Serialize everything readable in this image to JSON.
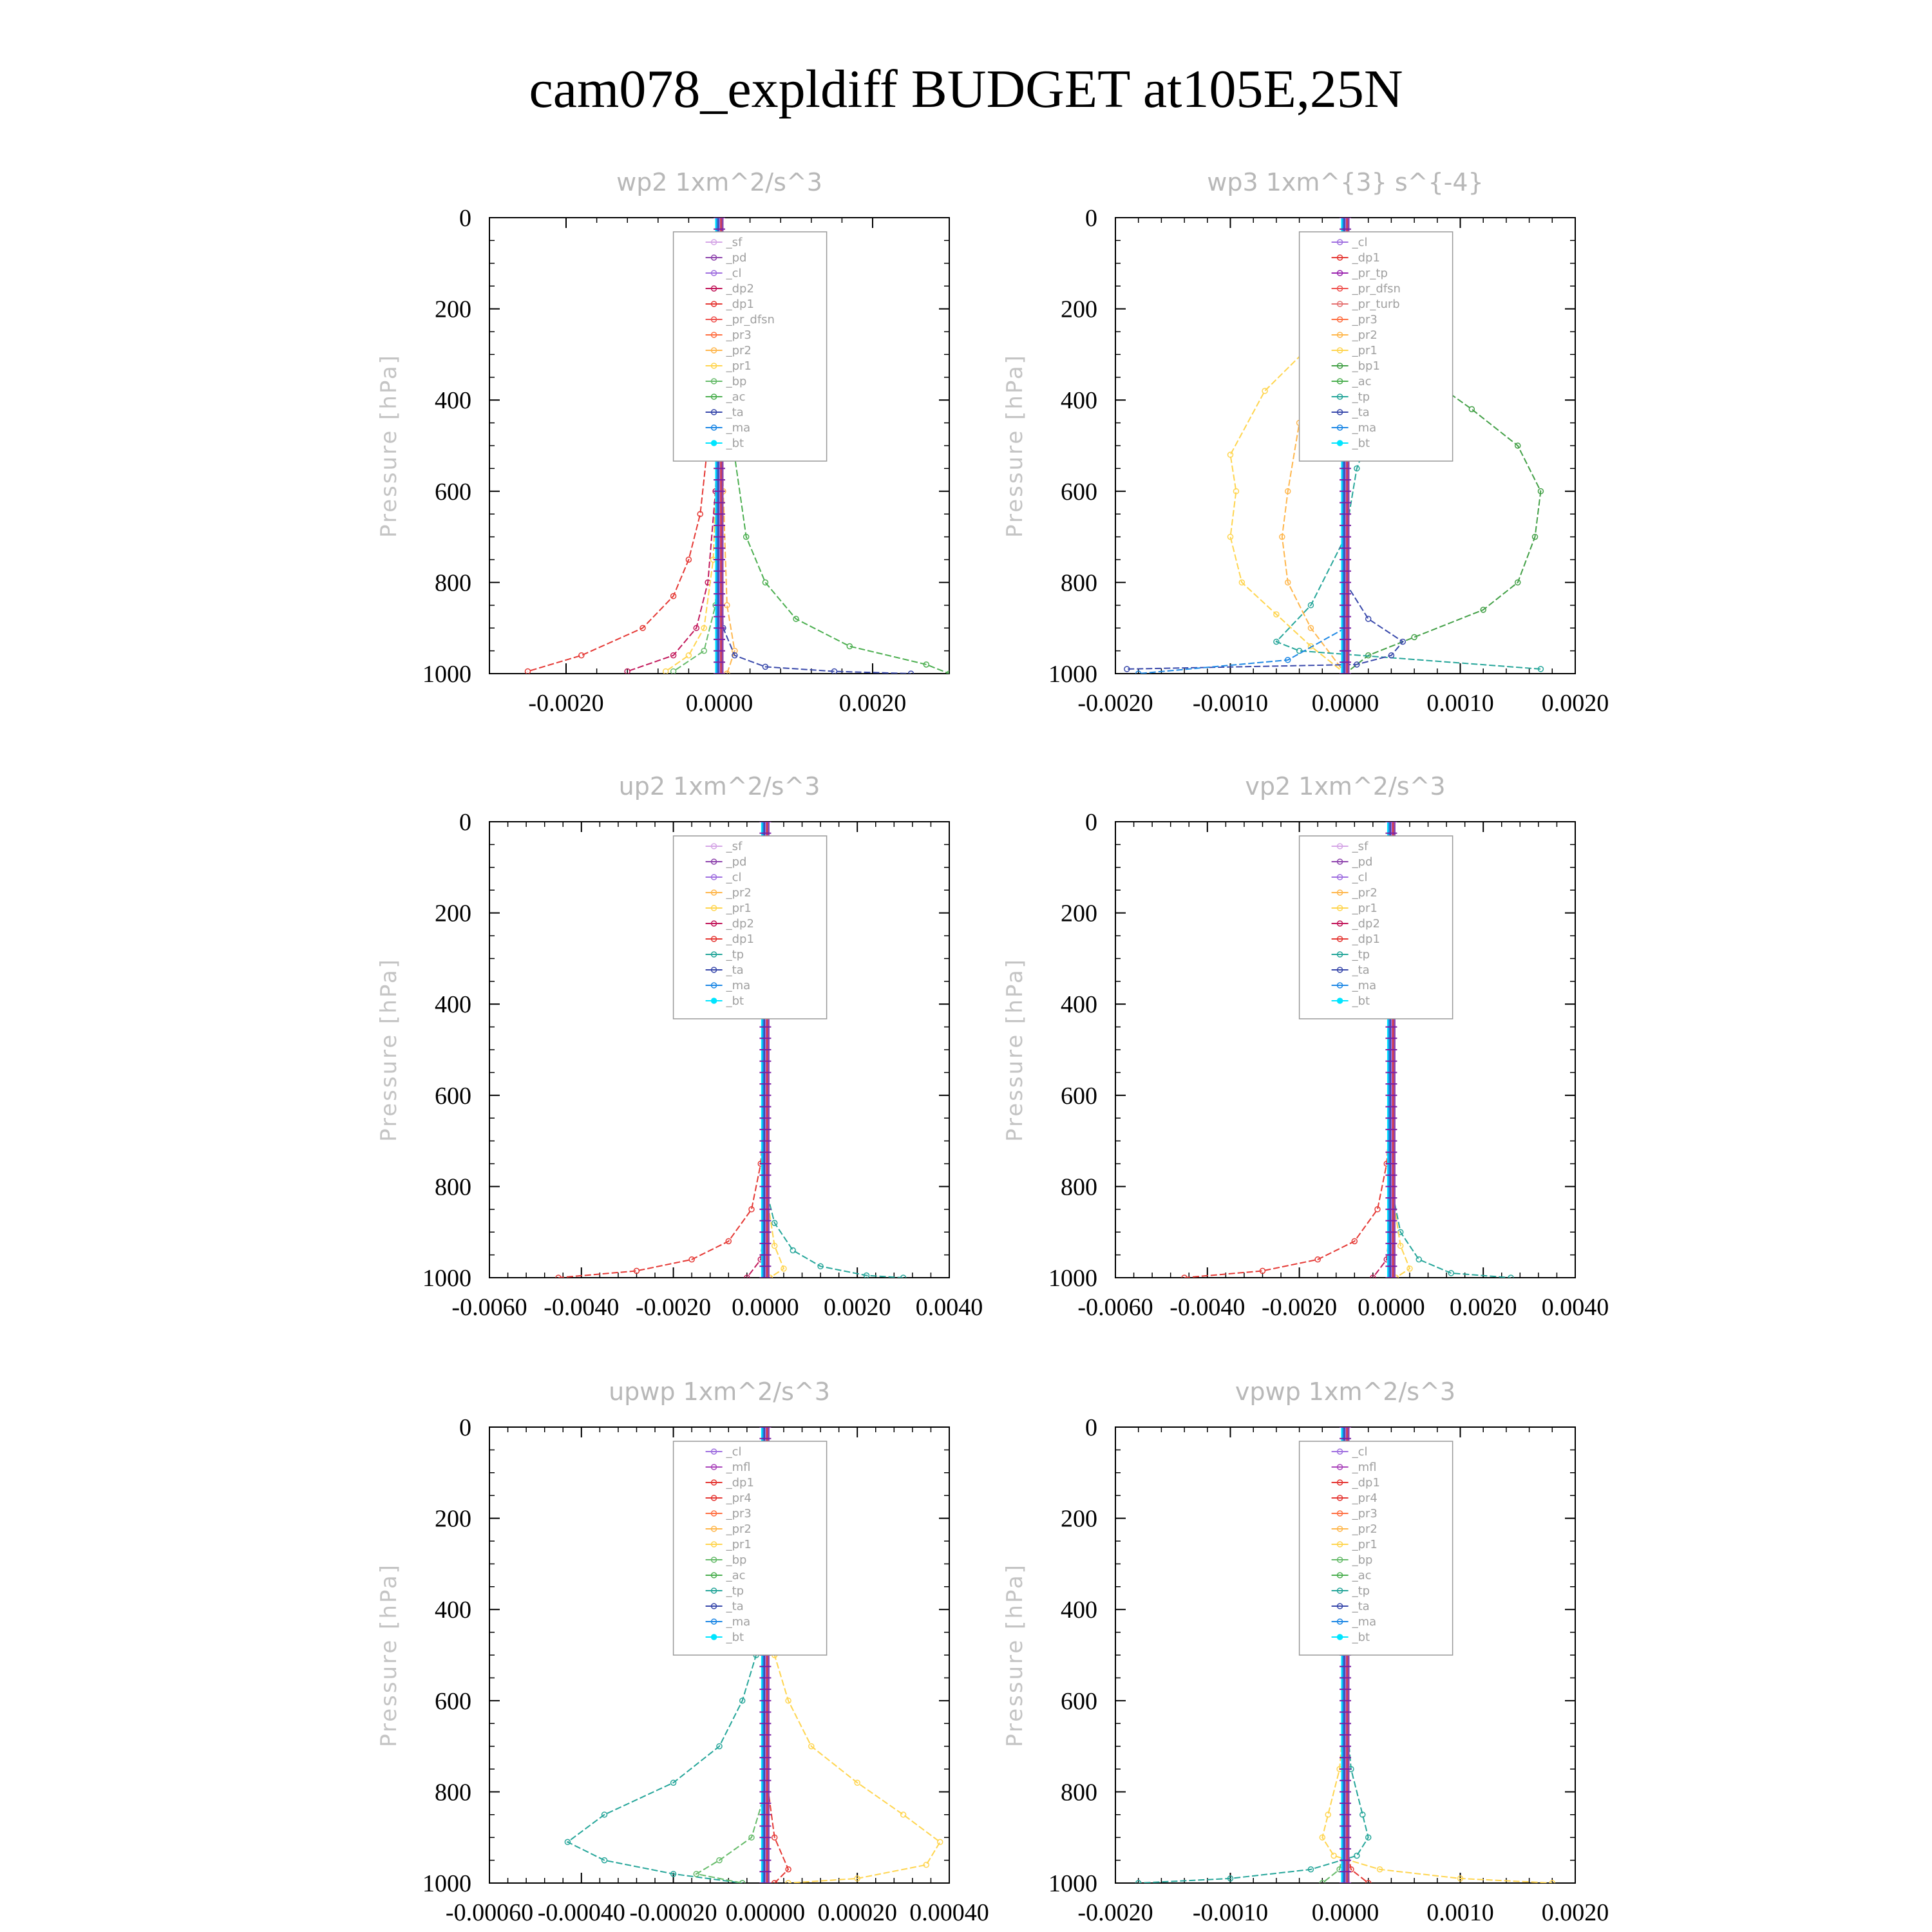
{
  "title": "cam078_expldiff  BUDGET at105E,25N",
  "colors": {
    "_sf": "#d5a6e6",
    "_pd": "#8e44ad",
    "_cl": "#a070e0",
    "_dp2": "#c2185b",
    "_dp1": "#e53935",
    "_pr_dfsn": "#ef5350",
    "_pr_tp": "#9c27b0",
    "_pr_turb": "#e57373",
    "_pr4": "#e53935",
    "_pr3": "#ff7043",
    "_pr2": "#ffb74d",
    "_pr1": "#ffd54f",
    "_bp": "#66bb6a",
    "_bp1": "#43a047",
    "_ac": "#4caf50",
    "_tp": "#26a69a",
    "_ta": "#3949ab",
    "_ma": "#1e88e5",
    "_bt": "#00e5ff",
    "_mfl": "#ab47bc"
  },
  "chart_data": [
    {
      "type": "line",
      "title": "wp2   1xm^2/s^3",
      "ylabel": "Pressure [hPa]",
      "xlim": [
        -0.003,
        0.003
      ],
      "ylim": [
        0,
        1000
      ],
      "xticks": [
        "-0.0020",
        "0.0000",
        "0.0020"
      ],
      "xtick_values": [
        -0.002,
        0,
        0.002
      ],
      "yticks": [
        "0",
        "200",
        "400",
        "600",
        "800",
        "1000"
      ],
      "legend": [
        "_sf",
        "_pd",
        "_cl",
        "_dp2",
        "_dp1",
        "_pr_dfsn",
        "_pr3",
        "_pr2",
        "_pr1",
        "_bp",
        "_ac",
        "_ta",
        "_ma",
        "_bt"
      ],
      "series": [
        {
          "name": "_ac",
          "x": [
            0,
            5e-05,
            0.00018,
            0.00035,
            0.0006,
            0.001,
            0.0017,
            0.0027,
            0.003
          ],
          "y": [
            100,
            300,
            500,
            700,
            800,
            880,
            940,
            980,
            1000
          ]
        },
        {
          "name": "_dp1",
          "x": [
            0,
            -0.00012,
            -0.00025,
            -0.0004,
            -0.0006,
            -0.001,
            -0.0018,
            -0.0025
          ],
          "y": [
            200,
            450,
            650,
            750,
            830,
            900,
            960,
            995
          ]
        },
        {
          "name": "_dp2",
          "x": [
            0,
            -5e-05,
            -0.00015,
            -0.0003,
            -0.0006,
            -0.0012
          ],
          "y": [
            300,
            600,
            800,
            900,
            960,
            995
          ]
        },
        {
          "name": "_pr1",
          "x": [
            0,
            -8e-05,
            -0.0002,
            -0.0004,
            -0.0007
          ],
          "y": [
            400,
            750,
            900,
            960,
            995
          ]
        },
        {
          "name": "_pr2",
          "x": [
            0,
            5e-05,
            0.0001,
            0.0002,
            0.0001
          ],
          "y": [
            100,
            600,
            850,
            950,
            1000
          ]
        },
        {
          "name": "_bp",
          "x": [
            0,
            -5e-05,
            -0.0002,
            -0.0006
          ],
          "y": [
            500,
            850,
            950,
            995
          ]
        },
        {
          "name": "_ta",
          "x": [
            0,
            5e-05,
            0.0002,
            0.0006,
            0.0015,
            0.0025
          ],
          "y": [
            700,
            900,
            960,
            985,
            995,
            1000
          ]
        },
        {
          "name": "_ma",
          "x": [
            0,
            0,
            0,
            0
          ],
          "y": [
            0,
            400,
            800,
            1000
          ]
        }
      ]
    },
    {
      "type": "line",
      "title": "wp3   1xm^{3} s^{-4}",
      "ylabel": "Pressure [hPa]",
      "xlim": [
        -0.002,
        0.002
      ],
      "ylim": [
        0,
        1000
      ],
      "xticks": [
        "-0.0020",
        "-0.0010",
        "0.0000",
        "0.0010",
        "0.0020"
      ],
      "xtick_values": [
        -0.002,
        -0.001,
        0,
        0.001,
        0.002
      ],
      "yticks": [
        "0",
        "200",
        "400",
        "600",
        "800",
        "1000"
      ],
      "legend": [
        "_cl",
        "_dp1",
        "_pr_tp",
        "_pr_dfsn",
        "_pr_turb",
        "_pr3",
        "_pr2",
        "_pr1",
        "_bp1",
        "_ac",
        "_tp",
        "_ta",
        "_ma",
        "_bt"
      ],
      "series": [
        {
          "name": "_bp1",
          "x": [
            0,
            0.0002,
            0.0006,
            0.0011,
            0.0015,
            0.0017,
            0.00165,
            0.0015,
            0.0012,
            0.0006,
            0.0002,
            0
          ],
          "y": [
            200,
            250,
            330,
            420,
            500,
            600,
            700,
            800,
            860,
            920,
            960,
            1000
          ]
        },
        {
          "name": "_pr1",
          "x": [
            0,
            -0.0003,
            -0.0007,
            -0.001,
            -0.00095,
            -0.001,
            -0.0009,
            -0.0006,
            -0.0003,
            0
          ],
          "y": [
            200,
            280,
            380,
            520,
            600,
            700,
            800,
            870,
            940,
            1000
          ]
        },
        {
          "name": "_pr2",
          "x": [
            0,
            -0.0002,
            -0.0004,
            -0.0005,
            -0.00055,
            -0.0005,
            -0.0003,
            0
          ],
          "y": [
            200,
            330,
            450,
            600,
            700,
            800,
            900,
            1000
          ]
        },
        {
          "name": "_tp",
          "x": [
            0,
            0.0002,
            0.0003,
            0.00025,
            0.0001,
            0,
            -0.0003,
            -0.0006,
            -0.0004,
            0.0017
          ],
          "y": [
            150,
            250,
            340,
            450,
            550,
            700,
            850,
            930,
            950,
            990
          ]
        },
        {
          "name": "_ta",
          "x": [
            0,
            0.0002,
            0.0005,
            0.0004,
            0.0001,
            -0.0019
          ],
          "y": [
            800,
            880,
            930,
            960,
            980,
            990
          ]
        },
        {
          "name": "_ma",
          "x": [
            0,
            -0.0005,
            -0.0018
          ],
          "y": [
            900,
            970,
            1000
          ]
        }
      ]
    },
    {
      "type": "line",
      "title": "up2   1xm^2/s^3",
      "ylabel": "Pressure [hPa]",
      "xlim": [
        -0.006,
        0.004
      ],
      "ylim": [
        0,
        1000
      ],
      "xticks": [
        "-0.0060",
        "-0.0040",
        "-0.0020",
        "0.0000",
        "0.0020",
        "0.0040"
      ],
      "xtick_values": [
        -0.006,
        -0.004,
        -0.002,
        0,
        0.002,
        0.004
      ],
      "yticks": [
        "0",
        "200",
        "400",
        "600",
        "800",
        "1000"
      ],
      "legend": [
        "_sf",
        "_pd",
        "_cl",
        "_pr2",
        "_pr1",
        "_dp2",
        "_dp1",
        "_tp",
        "_ta",
        "_ma",
        "_bt"
      ],
      "series": [
        {
          "name": "_dp1",
          "x": [
            0,
            -0.0001,
            -0.0003,
            -0.0008,
            -0.0016,
            -0.0028,
            -0.0045
          ],
          "y": [
            600,
            750,
            850,
            920,
            960,
            985,
            1000
          ]
        },
        {
          "name": "_tp",
          "x": [
            0,
            0.0002,
            0.0006,
            0.0012,
            0.0022,
            0.003
          ],
          "y": [
            800,
            880,
            940,
            975,
            995,
            1000
          ]
        },
        {
          "name": "_pr1",
          "x": [
            0,
            0.0002,
            0.0004,
            0.0001
          ],
          "y": [
            800,
            930,
            980,
            1000
          ]
        },
        {
          "name": "_dp2",
          "x": [
            0,
            -0.0001,
            -0.0004
          ],
          "y": [
            850,
            960,
            1000
          ]
        },
        {
          "name": "_ta",
          "x": [
            0,
            0,
            0
          ],
          "y": [
            0,
            500,
            1000
          ]
        }
      ]
    },
    {
      "type": "line",
      "title": "vp2   1xm^2/s^3",
      "ylabel": "Pressure [hPa]",
      "xlim": [
        -0.006,
        0.004
      ],
      "ylim": [
        0,
        1000
      ],
      "xticks": [
        "-0.0060",
        "-0.0040",
        "-0.0020",
        "0.0000",
        "0.0020",
        "0.0040"
      ],
      "xtick_values": [
        -0.006,
        -0.004,
        -0.002,
        0,
        0.002,
        0.004
      ],
      "yticks": [
        "0",
        "200",
        "400",
        "600",
        "800",
        "1000"
      ],
      "legend": [
        "_sf",
        "_pd",
        "_cl",
        "_pr2",
        "_pr1",
        "_dp2",
        "_dp1",
        "_tp",
        "_ta",
        "_ma",
        "_bt"
      ],
      "series": [
        {
          "name": "_dp1",
          "x": [
            0,
            -0.0001,
            -0.0003,
            -0.0008,
            -0.0016,
            -0.0028,
            -0.0045
          ],
          "y": [
            600,
            750,
            850,
            920,
            960,
            985,
            1000
          ]
        },
        {
          "name": "_tp",
          "x": [
            0,
            0.0002,
            0.0006,
            0.0013,
            0.0026
          ],
          "y": [
            800,
            900,
            960,
            990,
            1000
          ]
        },
        {
          "name": "_pr1",
          "x": [
            0,
            0.0002,
            0.0004,
            0.0001
          ],
          "y": [
            800,
            930,
            980,
            1000
          ]
        },
        {
          "name": "_dp2",
          "x": [
            0,
            -0.0001,
            -0.0004
          ],
          "y": [
            850,
            960,
            1000
          ]
        },
        {
          "name": "_ta",
          "x": [
            0,
            0,
            0
          ],
          "y": [
            0,
            500,
            1000
          ]
        }
      ]
    },
    {
      "type": "line",
      "title": "upwp   1xm^2/s^3",
      "ylabel": "Pressure [hPa]",
      "xlim": [
        -0.0006,
        0.0004
      ],
      "ylim": [
        0,
        1000
      ],
      "xticks": [
        "-0.00060",
        "-0.00040",
        "-0.00020",
        "0.00000",
        "0.00020",
        "0.00040"
      ],
      "xtick_values": [
        -0.0006,
        -0.0004,
        -0.0002,
        0,
        0.0002,
        0.0004
      ],
      "yticks": [
        "0",
        "200",
        "400",
        "600",
        "800",
        "1000"
      ],
      "legend": [
        "_cl",
        "_mfl",
        "_dp1",
        "_pr4",
        "_pr3",
        "_pr2",
        "_pr1",
        "_bp",
        "_ac",
        "_tp",
        "_ta",
        "_ma",
        "_bt"
      ],
      "series": [
        {
          "name": "_tp",
          "x": [
            0,
            -2e-05,
            -5e-05,
            -0.0001,
            -0.0002,
            -0.00035,
            -0.00043,
            -0.00035,
            -0.0002,
            -5e-05
          ],
          "y": [
            300,
            500,
            600,
            700,
            780,
            850,
            910,
            950,
            980,
            1000
          ]
        },
        {
          "name": "_pr1",
          "x": [
            0,
            2e-05,
            5e-05,
            0.0001,
            0.0002,
            0.0003,
            0.00038,
            0.00035,
            0.0002,
            5e-05
          ],
          "y": [
            300,
            500,
            600,
            700,
            780,
            850,
            910,
            960,
            990,
            1000
          ]
        },
        {
          "name": "_bp",
          "x": [
            0,
            -3e-05,
            -0.0001,
            -0.00015,
            -5e-05
          ],
          "y": [
            800,
            900,
            950,
            980,
            1000
          ]
        },
        {
          "name": "_dp1",
          "x": [
            0,
            2e-05,
            5e-05,
            2e-05
          ],
          "y": [
            750,
            900,
            970,
            1000
          ]
        },
        {
          "name": "_ta",
          "x": [
            0,
            0,
            0
          ],
          "y": [
            0,
            500,
            1000
          ]
        }
      ]
    },
    {
      "type": "line",
      "title": "vpwp   1xm^2/s^3",
      "ylabel": "Pressure [hPa]",
      "xlim": [
        -0.002,
        0.002
      ],
      "ylim": [
        0,
        1000
      ],
      "xticks": [
        "-0.0020",
        "-0.0010",
        "0.0000",
        "0.0010",
        "0.0020"
      ],
      "xtick_values": [
        -0.002,
        -0.001,
        0,
        0.001,
        0.002
      ],
      "yticks": [
        "0",
        "200",
        "400",
        "600",
        "800",
        "1000"
      ],
      "legend": [
        "_cl",
        "_mfl",
        "_dp1",
        "_pr4",
        "_pr3",
        "_pr2",
        "_pr1",
        "_bp",
        "_ac",
        "_tp",
        "_ta",
        "_ma",
        "_bt"
      ],
      "series": [
        {
          "name": "_pr1",
          "x": [
            0,
            -5e-05,
            -0.00015,
            -0.0002,
            -0.0001,
            0.0003,
            0.001,
            0.0018
          ],
          "y": [
            600,
            750,
            850,
            900,
            940,
            970,
            990,
            1000
          ]
        },
        {
          "name": "_tp",
          "x": [
            0,
            5e-05,
            0.00015,
            0.0002,
            0.0001,
            -0.0003,
            -0.001,
            -0.0018
          ],
          "y": [
            600,
            750,
            850,
            900,
            940,
            970,
            990,
            1000
          ]
        },
        {
          "name": "_dp1",
          "x": [
            0,
            5e-05,
            0.0002
          ],
          "y": [
            900,
            970,
            1000
          ]
        },
        {
          "name": "_bp",
          "x": [
            0,
            -5e-05,
            -0.0002
          ],
          "y": [
            900,
            970,
            1000
          ]
        },
        {
          "name": "_ta",
          "x": [
            0,
            0,
            0
          ],
          "y": [
            0,
            500,
            1000
          ]
        }
      ]
    }
  ]
}
